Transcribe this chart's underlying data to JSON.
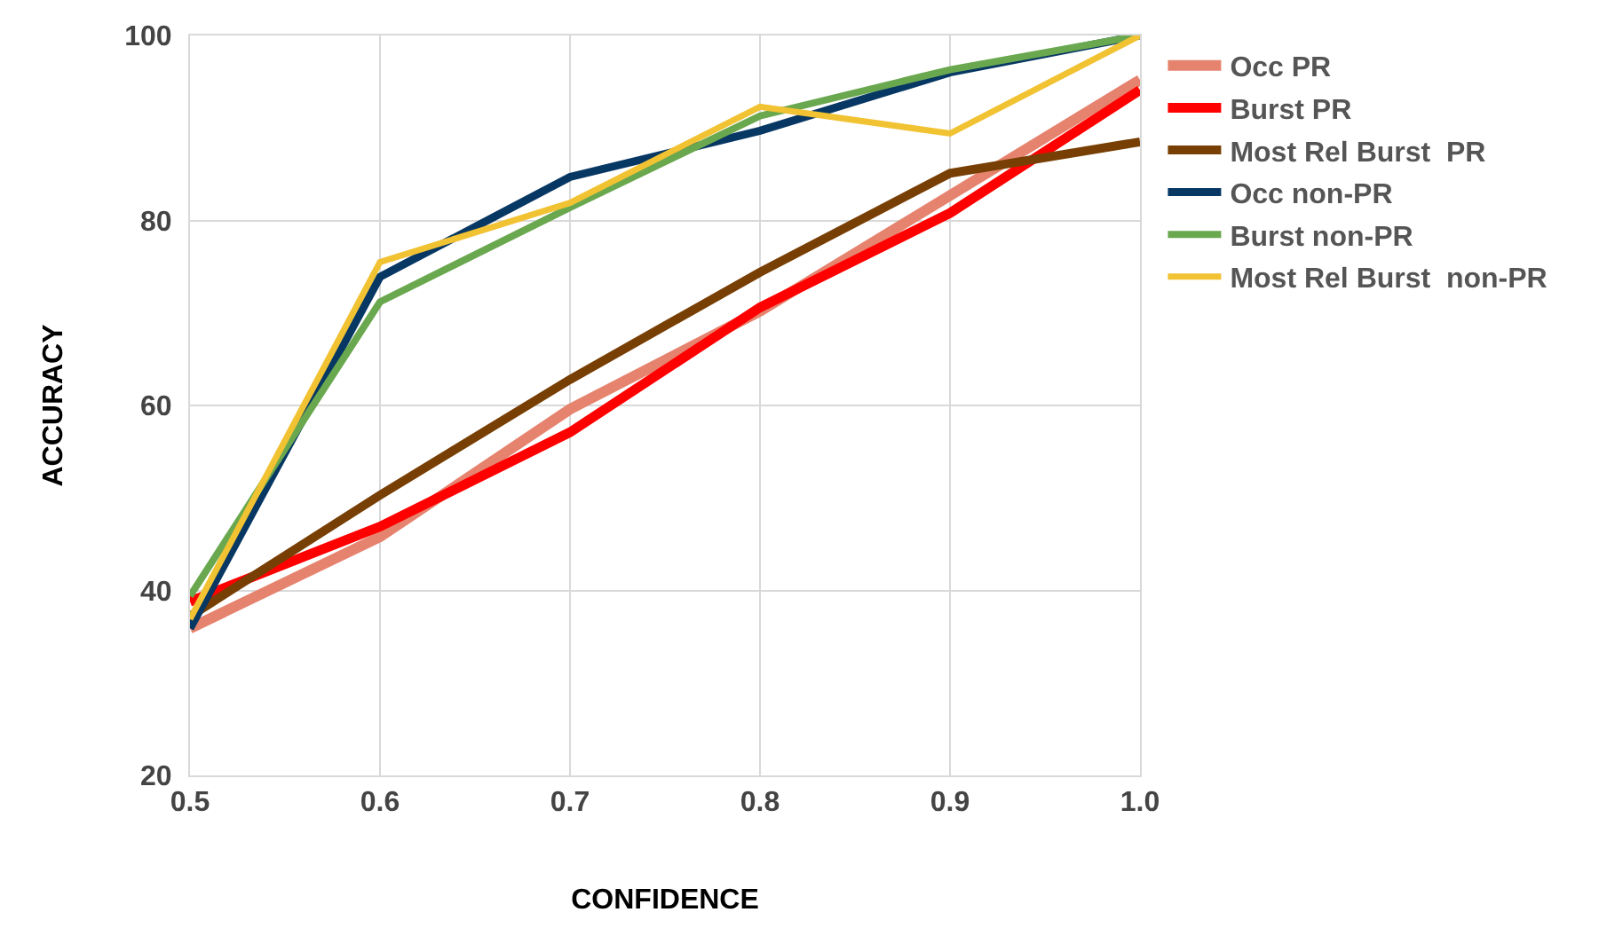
{
  "chart_data": {
    "type": "line",
    "xlabel": "CONFIDENCE",
    "ylabel": "ACCURACY",
    "x": [
      0.5,
      0.6,
      0.7,
      0.8,
      0.9,
      1.0
    ],
    "xlim": [
      0.5,
      1.0
    ],
    "xticks": [
      {
        "value": 0.5,
        "label": "0.5"
      },
      {
        "value": 0.6,
        "label": "0.6"
      },
      {
        "value": 0.7,
        "label": "0.7"
      },
      {
        "value": 0.8,
        "label": "0.8"
      },
      {
        "value": 0.9,
        "label": "0.9"
      },
      {
        "value": 1.0,
        "label": "1.0"
      }
    ],
    "ylim": [
      20,
      100
    ],
    "yticks": [
      20,
      40,
      60,
      80,
      100
    ],
    "grid": true,
    "legend": "right",
    "marker": "none",
    "line_style": "solid",
    "series": [
      {
        "name": "Occ PR",
        "color": "#e6836f",
        "values": [
          35.9,
          45.8,
          59.6,
          70.2,
          82.7,
          95.2
        ]
      },
      {
        "name": "Burst PR",
        "color": "#ff0000",
        "values": [
          38.8,
          46.9,
          57.1,
          70.6,
          80.8,
          94.1
        ]
      },
      {
        "name": "Most Rel Burst  PR",
        "color": "#783f04",
        "values": [
          37.2,
          50.3,
          62.8,
          74.4,
          85.1,
          88.5
        ]
      },
      {
        "name": "Occ non-PR",
        "color": "#073763",
        "values": [
          35.9,
          73.9,
          84.7,
          89.7,
          96.0,
          100
        ]
      },
      {
        "name": "Burst non-PR",
        "color": "#6aa84f",
        "values": [
          39.4,
          71.2,
          81.4,
          91.3,
          96.3,
          100
        ]
      },
      {
        "name": "Most Rel Burst  non-PR",
        "color": "#f1c232",
        "values": [
          36.9,
          75.5,
          81.9,
          92.3,
          89.4,
          100
        ]
      }
    ]
  }
}
